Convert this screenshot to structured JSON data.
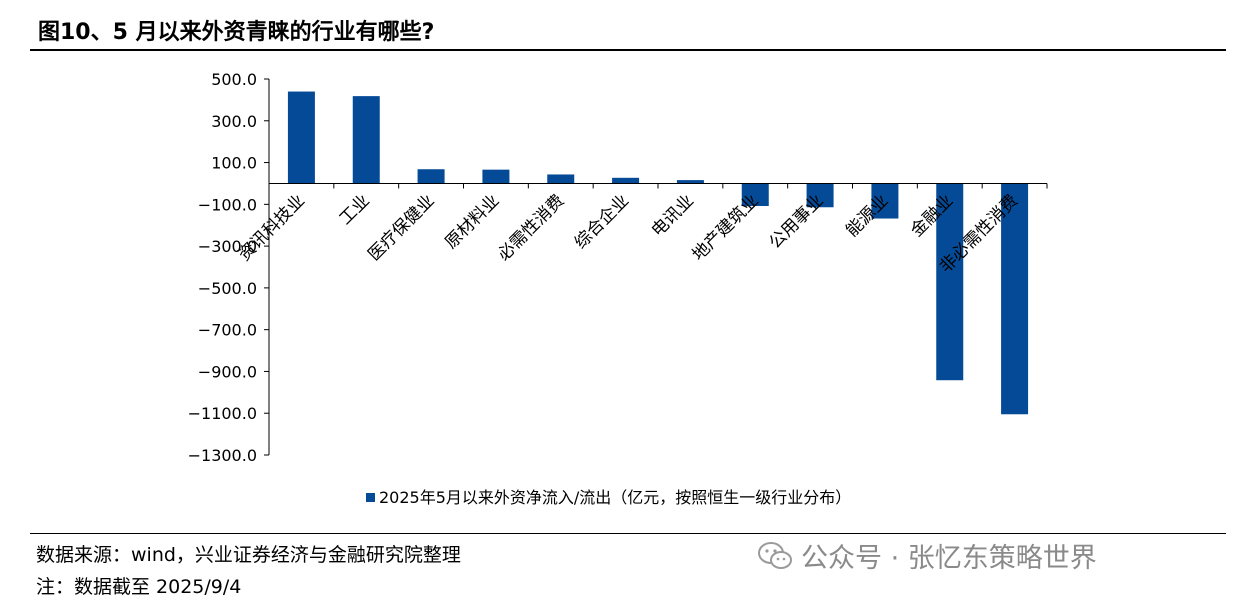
{
  "header": {
    "title": "图10、5 月以来外资青睐的行业有哪些?"
  },
  "footer": {
    "source": "数据来源：wind，兴业证券经济与金融研究院整理",
    "note": "注：数据截至 2025/9/4",
    "wechat_label": "公众号 · 张忆东策略世界"
  },
  "chart_data": {
    "type": "bar",
    "categories": [
      "资讯科技业",
      "工业",
      "医疗保健业",
      "原材料业",
      "必需性消费",
      "综合企业",
      "电讯业",
      "地产建筑业",
      "公用事业",
      "能源业",
      "金融业",
      "非必需性消费"
    ],
    "series": [
      {
        "name": "2025年5月以来外资净流入/流出（亿元，按照恒生一级行业分布）",
        "values": [
          440,
          418,
          68,
          66,
          43,
          27,
          16,
          -108,
          -114,
          -168,
          -942,
          -1105
        ],
        "color": "#054A97"
      }
    ],
    "ylim": [
      -1300,
      500
    ],
    "yticks": [
      "500.0",
      "300.0",
      "100.0",
      "−100.0",
      "−300.0",
      "−500.0",
      "−700.0",
      "−900.0",
      "−1100.0",
      "−1300.0"
    ],
    "legend_position": "bottom",
    "grid": false
  }
}
